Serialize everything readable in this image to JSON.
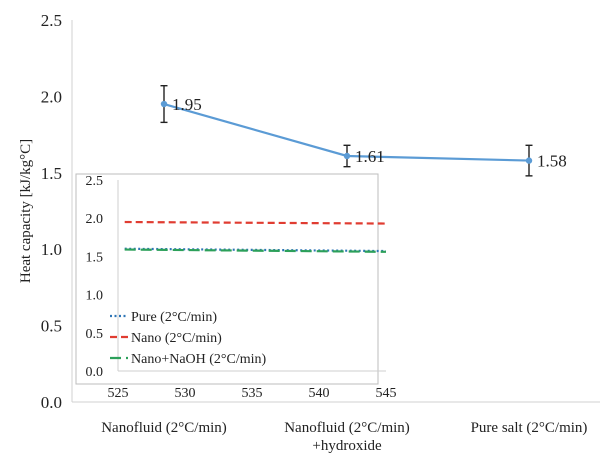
{
  "chart_data": [
    {
      "type": "line",
      "title": "",
      "xlabel": "",
      "ylabel": "Heat capacity [kJ/kg°C]",
      "ylim": [
        0,
        2.5
      ],
      "yticks": [
        "0.0",
        "0.5",
        "1.0",
        "1.5",
        "2.0",
        "2.5"
      ],
      "categories": [
        [
          "Nanofluid (2°C/min)"
        ],
        [
          "Nanofluid (2°C/min)",
          "+hydroxide"
        ],
        [
          "Pure salt (2°C/min)"
        ]
      ],
      "series": [
        {
          "color": "#5b9bd5",
          "values": [
            1.95,
            1.61,
            1.58
          ],
          "labels": [
            "1.95",
            "1.61",
            "1.58"
          ],
          "error": [
            0.12,
            0.07,
            0.1
          ]
        }
      ],
      "grid": false
    },
    {
      "type": "line",
      "title": "",
      "xlabel": "",
      "ylabel": "",
      "xlim": [
        525,
        545
      ],
      "ylim": [
        0,
        2.5
      ],
      "xticks": [
        "525",
        "530",
        "535",
        "540",
        "545"
      ],
      "yticks": [
        "0.0",
        "0.5",
        "1.0",
        "1.5",
        "2.0",
        "2.5"
      ],
      "legend_position": "bottom-left",
      "series": [
        {
          "name": "Pure (2°C/min)",
          "color": "#2e75b6",
          "style": "dotted",
          "x": [
            525.5,
            545
          ],
          "y": [
            1.6,
            1.57
          ]
        },
        {
          "name": "Nano (2°C/min)",
          "color": "#e03c31",
          "style": "dashed",
          "x": [
            525.5,
            545
          ],
          "y": [
            1.95,
            1.93
          ]
        },
        {
          "name": "Nano+NaOH (2°C/min)",
          "color": "#2ca05a",
          "style": "longdash",
          "x": [
            525.5,
            545
          ],
          "y": [
            1.59,
            1.56
          ]
        }
      ]
    }
  ]
}
